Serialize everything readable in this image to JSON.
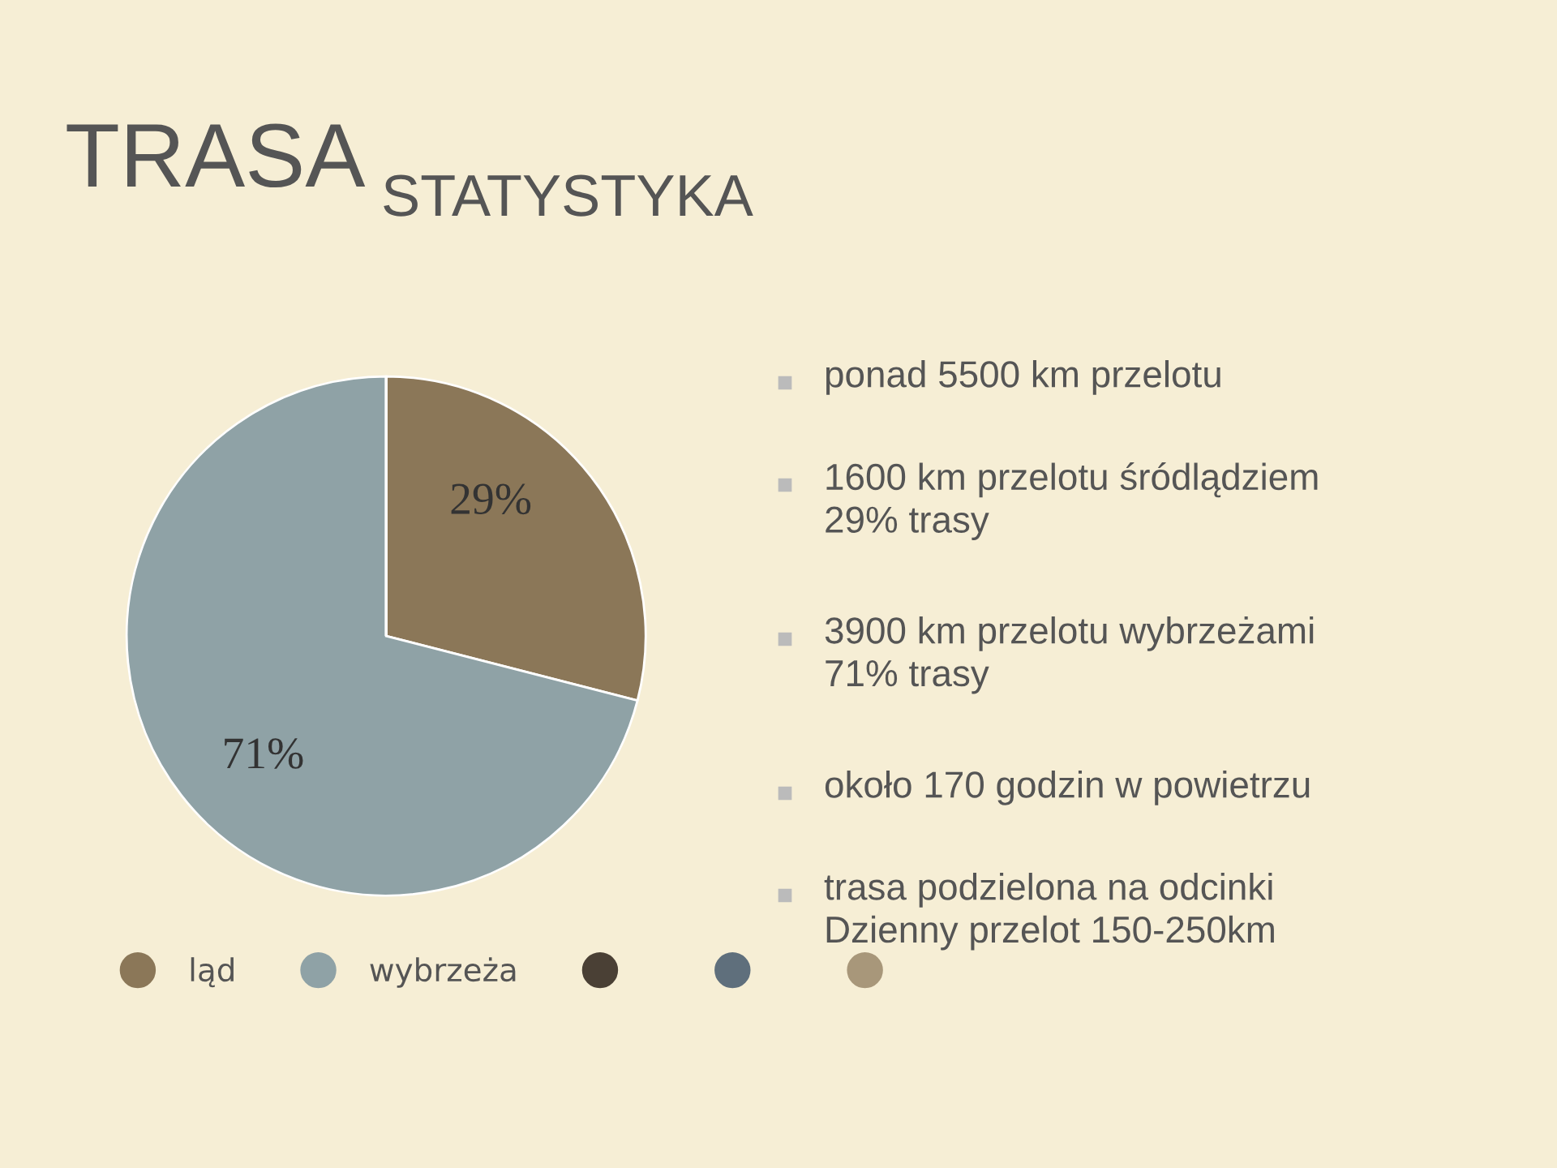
{
  "chart_data": {
    "type": "pie",
    "title": "TRASA",
    "subtitle": "STATYSTYKA",
    "categories": [
      "ląd",
      "wybrzeża",
      null,
      null,
      null
    ],
    "values": [
      29,
      71,
      0,
      0,
      0
    ],
    "colors": [
      "#8b7758",
      "#8fa2a6",
      "#4a4035",
      "#5f6f7c",
      "#a8977a"
    ],
    "value_labels": [
      "29%",
      "71%",
      null,
      null,
      null
    ],
    "legend": "bottom",
    "annotations": [
      "ponad 5500 km przelotu",
      "1600 km przelotu śródlądziem\n29% trasy",
      "3900 km przelotu wybrzeżami\n71% trasy",
      "około 170 godzin w powietrzu",
      "trasa podzielona na odcinki\nDzienny przelot 150-250km"
    ]
  }
}
